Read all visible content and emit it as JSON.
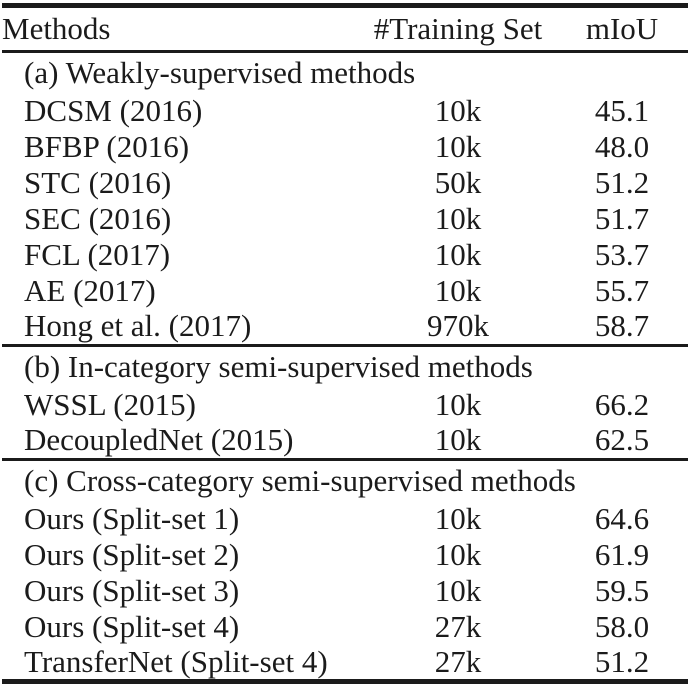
{
  "table": {
    "columns": [
      "Methods",
      "#Training Set",
      "mIoU"
    ],
    "sections": [
      {
        "label": "(a) Weakly-supervised methods",
        "rows": [
          {
            "method": "DCSM (2016)",
            "training_set": "10k",
            "miou": "45.1"
          },
          {
            "method": "BFBP (2016)",
            "training_set": "10k",
            "miou": "48.0"
          },
          {
            "method": "STC (2016)",
            "training_set": "50k",
            "miou": "51.2"
          },
          {
            "method": "SEC (2016)",
            "training_set": "10k",
            "miou": "51.7"
          },
          {
            "method": "FCL (2017)",
            "training_set": "10k",
            "miou": "53.7"
          },
          {
            "method": "AE (2017)",
            "training_set": "10k",
            "miou": "55.7"
          },
          {
            "method": "Hong et al. (2017)",
            "training_set": "970k",
            "miou": "58.7"
          }
        ]
      },
      {
        "label": "(b) In-category semi-supervised methods",
        "rows": [
          {
            "method": "WSSL (2015)",
            "training_set": "10k",
            "miou": "66.2"
          },
          {
            "method": "DecoupledNet (2015)",
            "training_set": "10k",
            "miou": "62.5"
          }
        ]
      },
      {
        "label": "(c) Cross-category semi-supervised methods",
        "rows": [
          {
            "method": "Ours (Split-set 1)",
            "training_set": "10k",
            "miou": "64.6"
          },
          {
            "method": "Ours (Split-set 2)",
            "training_set": "10k",
            "miou": "61.9"
          },
          {
            "method": "Ours (Split-set 3)",
            "training_set": "10k",
            "miou": "59.5"
          },
          {
            "method": "Ours (Split-set 4)",
            "training_set": "27k",
            "miou": "58.0"
          },
          {
            "method": "TransferNet (Split-set 4)",
            "training_set": "27k",
            "miou": "51.2"
          }
        ]
      }
    ],
    "colors": {
      "text": "#1b1b1b",
      "rule": "#1b1b1b",
      "background": "#ffffff"
    }
  },
  "chart_data": {
    "type": "table",
    "title": "",
    "columns": [
      "Methods",
      "#Training Set",
      "mIoU"
    ],
    "rows": [
      [
        "(a) Weakly-supervised methods",
        "",
        ""
      ],
      [
        "DCSM (2016)",
        "10k",
        45.1
      ],
      [
        "BFBP (2016)",
        "10k",
        48.0
      ],
      [
        "STC (2016)",
        "50k",
        51.2
      ],
      [
        "SEC (2016)",
        "10k",
        51.7
      ],
      [
        "FCL (2017)",
        "10k",
        53.7
      ],
      [
        "AE (2017)",
        "10k",
        55.7
      ],
      [
        "Hong et al. (2017)",
        "970k",
        58.7
      ],
      [
        "(b) In-category semi-supervised methods",
        "",
        ""
      ],
      [
        "WSSL (2015)",
        "10k",
        66.2
      ],
      [
        "DecoupledNet (2015)",
        "10k",
        62.5
      ],
      [
        "(c) Cross-category semi-supervised methods",
        "",
        ""
      ],
      [
        "Ours (Split-set 1)",
        "10k",
        64.6
      ],
      [
        "Ours (Split-set 2)",
        "10k",
        61.9
      ],
      [
        "Ours (Split-set 3)",
        "10k",
        59.5
      ],
      [
        "Ours (Split-set 4)",
        "27k",
        58.0
      ],
      [
        "TransferNet (Split-set 4)",
        "27k",
        51.2
      ]
    ]
  }
}
